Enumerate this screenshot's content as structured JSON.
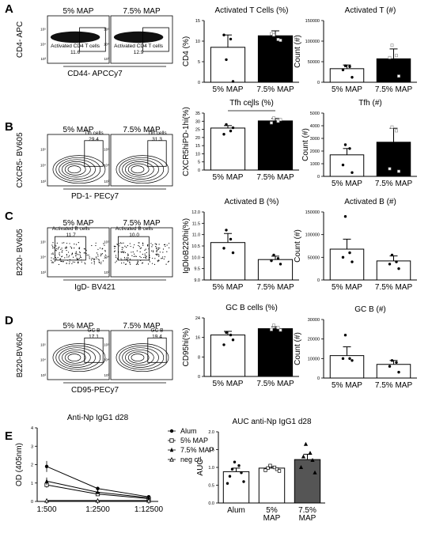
{
  "panels": {
    "A": {
      "letter": "A",
      "flow": {
        "titles": [
          "5% MAP",
          "7.5% MAP"
        ],
        "ylabel": "CD4- APC",
        "xlabel": "CD44- APCCy7",
        "gate_names": [
          "Activated CD4 T cells",
          "Activated CD4 T cells"
        ],
        "gate_values": [
          "11.6",
          "12.9"
        ]
      }
    },
    "B": {
      "letter": "B",
      "flow": {
        "titles": [
          "5% MAP",
          "7.5% MAP"
        ],
        "ylabel": "CXCR5- BV605",
        "xlabel": "PD-1- PECy7",
        "gate_names": [
          "Tfh cells",
          "Tfh cells"
        ],
        "gate_values": [
          "29.4",
          "31.3"
        ]
      }
    },
    "C": {
      "letter": "C",
      "flow": {
        "titles": [
          "5% MAP",
          "7.5% MAP"
        ],
        "ylabel": "B220- BV605",
        "xlabel": "IgD- BV421",
        "gate_names": [
          "Activated B cells",
          "Activated B cells"
        ],
        "gate_values": [
          "11.7",
          "10.0"
        ]
      }
    },
    "D": {
      "letter": "D",
      "flow": {
        "titles": [
          "5% MAP",
          "7.5% MAP"
        ],
        "ylabel": "B220-BV605",
        "xlabel": "CD95-PECy7",
        "gate_names": [
          "GC B",
          "GC B"
        ],
        "gate_values": [
          "17.1",
          "19.4"
        ]
      }
    },
    "E": {
      "letter": "E"
    }
  },
  "chart_data": [
    {
      "id": "a1",
      "type": "bar",
      "title": "Activated T Cells (%)",
      "ylabel": "CD4 (%)",
      "categories": [
        "5% MAP",
        "7.5% MAP"
      ],
      "values": [
        8.5,
        11.3
      ],
      "errors": [
        3.0,
        1.2
      ],
      "ylim": [
        0,
        15
      ],
      "yticks": [
        "0",
        "5",
        "10",
        "15"
      ],
      "fills": [
        "#ffffff",
        "#000000"
      ],
      "points": [
        [
          5.5,
          10.5,
          11.5,
          0.2
        ],
        [
          11.5,
          10.4,
          11.8,
          10.2
        ]
      ]
    },
    {
      "id": "a2",
      "type": "bar",
      "title": "Activated T (#)",
      "ylabel": "Count (#)",
      "categories": [
        "5% MAP",
        "7.5% MAP"
      ],
      "values": [
        33000,
        57000
      ],
      "errors": [
        9000,
        24000
      ],
      "ylim": [
        0,
        150000
      ],
      "yticks": [
        "0",
        "50000",
        "100000",
        "150000"
      ],
      "fills": [
        "#ffffff",
        "#000000"
      ],
      "points": [
        [
          40000,
          38000,
          30000,
          12000
        ],
        [
          90000,
          65000,
          60000,
          15000
        ]
      ]
    },
    {
      "id": "b1",
      "type": "bar",
      "title": "Tfh cells (%)",
      "ylabel": "CXCR5hiPD-1hi(%)",
      "categories": [
        "5% MAP",
        "7.5% MAP"
      ],
      "values": [
        25.8,
        30.2
      ],
      "errors": [
        1.5,
        1.5
      ],
      "ylim": [
        0,
        35
      ],
      "yticks": [
        "0",
        "5",
        "10",
        "15",
        "20",
        "25",
        "30",
        "35"
      ],
      "fills": [
        "#ffffff",
        "#000000"
      ],
      "points": [
        [
          28,
          24,
          22,
          26
        ],
        [
          32,
          30,
          29,
          31
        ]
      ],
      "annotation": "*"
    },
    {
      "id": "b2",
      "type": "bar",
      "title": "Tfh (#)",
      "ylabel": "Count (#)",
      "categories": [
        "5% MAP",
        "7.5% MAP"
      ],
      "values": [
        1700,
        2700
      ],
      "errors": [
        500,
        1100
      ],
      "ylim": [
        0,
        5000
      ],
      "yticks": [
        "0",
        "1000",
        "2000",
        "3000",
        "4000",
        "5000"
      ],
      "fills": [
        "#ffffff",
        "#000000"
      ],
      "points": [
        [
          2500,
          2200,
          900,
          300
        ],
        [
          3900,
          3600,
          600,
          400
        ]
      ]
    },
    {
      "id": "c1",
      "type": "bar",
      "title": "Activated B (%)",
      "ylabel": "IgDloB220hi(%)",
      "categories": [
        "5% MAP",
        "7.5% MAP"
      ],
      "values": [
        10.65,
        9.9
      ],
      "errors": [
        0.4,
        0.15
      ],
      "ylim": [
        9.0,
        12.0
      ],
      "yticks": [
        "9.0",
        "9.5",
        "10.0",
        "10.5",
        "11.0",
        "11.5",
        "12.0"
      ],
      "fills": [
        "#ffffff",
        "#ffffff"
      ],
      "points": [
        [
          11.2,
          10.8,
          10.4,
          10.2
        ],
        [
          10.1,
          9.95,
          9.85,
          9.7
        ]
      ]
    },
    {
      "id": "c2",
      "type": "bar",
      "title": "Activated B (#)",
      "ylabel": "Count (#)",
      "categories": [
        "5% MAP",
        "7.5% MAP"
      ],
      "values": [
        68000,
        42000
      ],
      "errors": [
        22000,
        11000
      ],
      "ylim": [
        0,
        150000
      ],
      "yticks": [
        "0",
        "50000",
        "100000",
        "150000"
      ],
      "fills": [
        "#ffffff",
        "#ffffff"
      ],
      "points": [
        [
          140000,
          60000,
          50000,
          40000
        ],
        [
          55000,
          40000,
          35000,
          25000
        ]
      ]
    },
    {
      "id": "d1",
      "type": "bar",
      "title": "GC B cells (%)",
      "ylabel": "CD95hi(%)",
      "categories": [
        "5% MAP",
        "7.5% MAP"
      ],
      "values": [
        17.0,
        19.6
      ],
      "errors": [
        1.5,
        0.8
      ],
      "ylim": [
        0,
        24
      ],
      "yticks": [
        "0",
        "8",
        "16",
        "24"
      ],
      "fills": [
        "#ffffff",
        "#000000"
      ],
      "points": [
        [
          18,
          17,
          13,
          15
        ],
        [
          21,
          20,
          19.2,
          19
        ]
      ]
    },
    {
      "id": "d2",
      "type": "bar",
      "title": "GC B (#)",
      "ylabel": "Count (#)",
      "categories": [
        "5% MAP",
        "7.5% MAP"
      ],
      "values": [
        11500,
        7000
      ],
      "errors": [
        4500,
        2000
      ],
      "ylim": [
        0,
        30000
      ],
      "yticks": [
        "0",
        "10000",
        "20000",
        "30000"
      ],
      "fills": [
        "#ffffff",
        "#ffffff"
      ],
      "points": [
        [
          22000,
          10000,
          10000,
          9000
        ],
        [
          9000,
          8000,
          6000,
          3000
        ]
      ]
    },
    {
      "id": "e1",
      "type": "line",
      "title": "Anti-Np IgG1 d28",
      "ylabel": "OD (405nm)",
      "x": [
        "1:500",
        "1:2500",
        "1:12500"
      ],
      "ylim": [
        0,
        4
      ],
      "yticks": [
        "0",
        "1",
        "2",
        "3",
        "4"
      ],
      "series": [
        {
          "name": "Alum",
          "values": [
            1.9,
            0.7,
            0.25
          ],
          "errors": [
            0.3,
            0.1,
            0.05
          ],
          "marker": "dot"
        },
        {
          "name": "5% MAP",
          "values": [
            0.9,
            0.4,
            0.15
          ],
          "errors": [
            0.15,
            0.05,
            0.03
          ],
          "marker": "square"
        },
        {
          "name": "7.5% MAP",
          "values": [
            1.1,
            0.5,
            0.2
          ],
          "errors": [
            0.2,
            0.08,
            0.04
          ],
          "marker": "star"
        },
        {
          "name": "neg ctl",
          "values": [
            0.05,
            0.05,
            0.05
          ],
          "errors": [
            0,
            0,
            0
          ],
          "marker": "triangle"
        }
      ]
    },
    {
      "id": "e2",
      "type": "bar",
      "title": "AUC anti-Np IgG1 d28",
      "ylabel": "AUC",
      "categories": [
        "Alum",
        "5%\nMAP",
        "7.5%\nMAP"
      ],
      "values": [
        0.88,
        0.98,
        1.22
      ],
      "errors": [
        0.1,
        0.04,
        0.15
      ],
      "ylim": [
        0,
        2.0
      ],
      "yticks": [
        "0.0",
        "0.5",
        "1.0",
        "1.5",
        "2.0"
      ],
      "fills": [
        "#ffffff",
        "#ffffff",
        "#555555"
      ],
      "points": [
        [
          1.15,
          1.05,
          0.95,
          0.85,
          0.75,
          0.6,
          0.55
        ],
        [
          1.05,
          1.0,
          0.98,
          0.95,
          0.92,
          0.9
        ],
        [
          1.65,
          1.4,
          1.3,
          1.2,
          1.0,
          0.85
        ]
      ]
    }
  ]
}
